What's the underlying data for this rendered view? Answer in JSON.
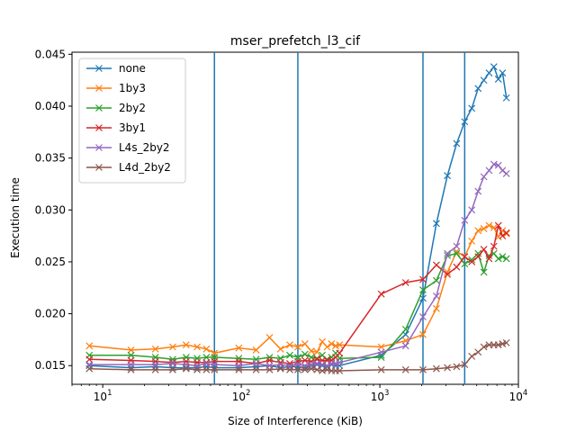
{
  "chart_data": {
    "type": "line",
    "title": "mser_prefetch_l3_cif",
    "xlabel": "Size of Interference (KiB)",
    "ylabel": "Execution time",
    "xscale": "log",
    "xlim": [
      6,
      10000
    ],
    "ylim": [
      0.0132,
      0.0452
    ],
    "x_ticks": [
      {
        "value": 10,
        "base": "10",
        "exp": "1"
      },
      {
        "value": 100,
        "base": "10",
        "exp": "2"
      },
      {
        "value": 1000,
        "base": "10",
        "exp": "3"
      },
      {
        "value": 10000,
        "base": "10",
        "exp": "4"
      }
    ],
    "y_ticks": [
      0.015,
      0.02,
      0.025,
      0.03,
      0.035,
      0.04,
      0.045
    ],
    "y_tick_labels": [
      "0.015",
      "0.020",
      "0.025",
      "0.030",
      "0.035",
      "0.040",
      "0.045"
    ],
    "vlines": [
      64,
      256,
      2048,
      4096
    ],
    "vline_color": "#1f77b4",
    "marker": "x",
    "legend_position": "upper left",
    "x": [
      8,
      16,
      24,
      32,
      40,
      48,
      56,
      64,
      96,
      128,
      160,
      192,
      224,
      256,
      288,
      320,
      352,
      384,
      416,
      448,
      480,
      512,
      1024,
      1536,
      2048,
      2560,
      3072,
      3584,
      4096,
      4608,
      5120,
      5632,
      6144,
      6656,
      7168,
      7680,
      8192
    ],
    "series": [
      {
        "name": "none",
        "color": "#1f77b4",
        "values": [
          0.015,
          0.0148,
          0.0149,
          0.0148,
          0.0148,
          0.0148,
          0.0149,
          0.0148,
          0.0148,
          0.0149,
          0.015,
          0.0148,
          0.0149,
          0.0149,
          0.0148,
          0.015,
          0.0151,
          0.015,
          0.0149,
          0.0151,
          0.015,
          0.015,
          0.016,
          0.018,
          0.0215,
          0.0287,
          0.0333,
          0.0364,
          0.0385,
          0.0398,
          0.0417,
          0.0425,
          0.0432,
          0.0438,
          0.0426,
          0.0432,
          0.0408
        ]
      },
      {
        "name": "1by3",
        "color": "#ff7f0e",
        "values": [
          0.0169,
          0.0165,
          0.0166,
          0.0168,
          0.017,
          0.0168,
          0.0166,
          0.0162,
          0.0167,
          0.0165,
          0.0177,
          0.0166,
          0.017,
          0.0168,
          0.0171,
          0.0164,
          0.0163,
          0.0173,
          0.0168,
          0.0171,
          0.0169,
          0.017,
          0.0168,
          0.0174,
          0.018,
          0.0205,
          0.024,
          0.026,
          0.0255,
          0.027,
          0.028,
          0.0282,
          0.0285,
          0.0283,
          0.0274,
          0.028,
          0.0277
        ]
      },
      {
        "name": "2by2",
        "color": "#2ca02c",
        "values": [
          0.016,
          0.016,
          0.0158,
          0.0156,
          0.0158,
          0.0157,
          0.0158,
          0.0158,
          0.0157,
          0.0156,
          0.0158,
          0.0157,
          0.016,
          0.0158,
          0.0161,
          0.0158,
          0.0157,
          0.016,
          0.0156,
          0.0158,
          0.0162,
          0.0157,
          0.0158,
          0.0185,
          0.0223,
          0.0232,
          0.0256,
          0.0258,
          0.0248,
          0.0252,
          0.0258,
          0.024,
          0.0256,
          0.0258,
          0.0253,
          0.0255,
          0.0253
        ]
      },
      {
        "name": "3by1",
        "color": "#d62728",
        "values": [
          0.0156,
          0.0155,
          0.0154,
          0.0153,
          0.0154,
          0.0153,
          0.0153,
          0.0154,
          0.0154,
          0.0152,
          0.0155,
          0.0153,
          0.0152,
          0.0154,
          0.0155,
          0.0154,
          0.0156,
          0.0155,
          0.0155,
          0.0155,
          0.0158,
          0.0162,
          0.0219,
          0.023,
          0.0233,
          0.0247,
          0.0238,
          0.0245,
          0.0255,
          0.025,
          0.0255,
          0.0262,
          0.0253,
          0.0265,
          0.0285,
          0.0275,
          0.0278
        ]
      },
      {
        "name": "L4s_2by2",
        "color": "#9467bd",
        "values": [
          0.0151,
          0.0151,
          0.0151,
          0.0152,
          0.0151,
          0.015,
          0.0152,
          0.0151,
          0.015,
          0.0152,
          0.015,
          0.0151,
          0.015,
          0.0151,
          0.015,
          0.0151,
          0.0152,
          0.0151,
          0.015,
          0.0152,
          0.0152,
          0.0153,
          0.0163,
          0.0169,
          0.0197,
          0.0217,
          0.0258,
          0.0265,
          0.029,
          0.03,
          0.0318,
          0.0332,
          0.0338,
          0.0344,
          0.0343,
          0.0338,
          0.0335
        ]
      },
      {
        "name": "L4d_2by2",
        "color": "#8c564b",
        "values": [
          0.0147,
          0.0146,
          0.0146,
          0.0146,
          0.0147,
          0.0146,
          0.0146,
          0.0146,
          0.0146,
          0.0146,
          0.0146,
          0.0147,
          0.0146,
          0.0146,
          0.0146,
          0.0147,
          0.0146,
          0.0145,
          0.0146,
          0.0145,
          0.0145,
          0.0145,
          0.0146,
          0.0146,
          0.0146,
          0.0147,
          0.0148,
          0.0149,
          0.0151,
          0.0159,
          0.0163,
          0.0168,
          0.017,
          0.017,
          0.017,
          0.0171,
          0.0172
        ]
      }
    ]
  }
}
